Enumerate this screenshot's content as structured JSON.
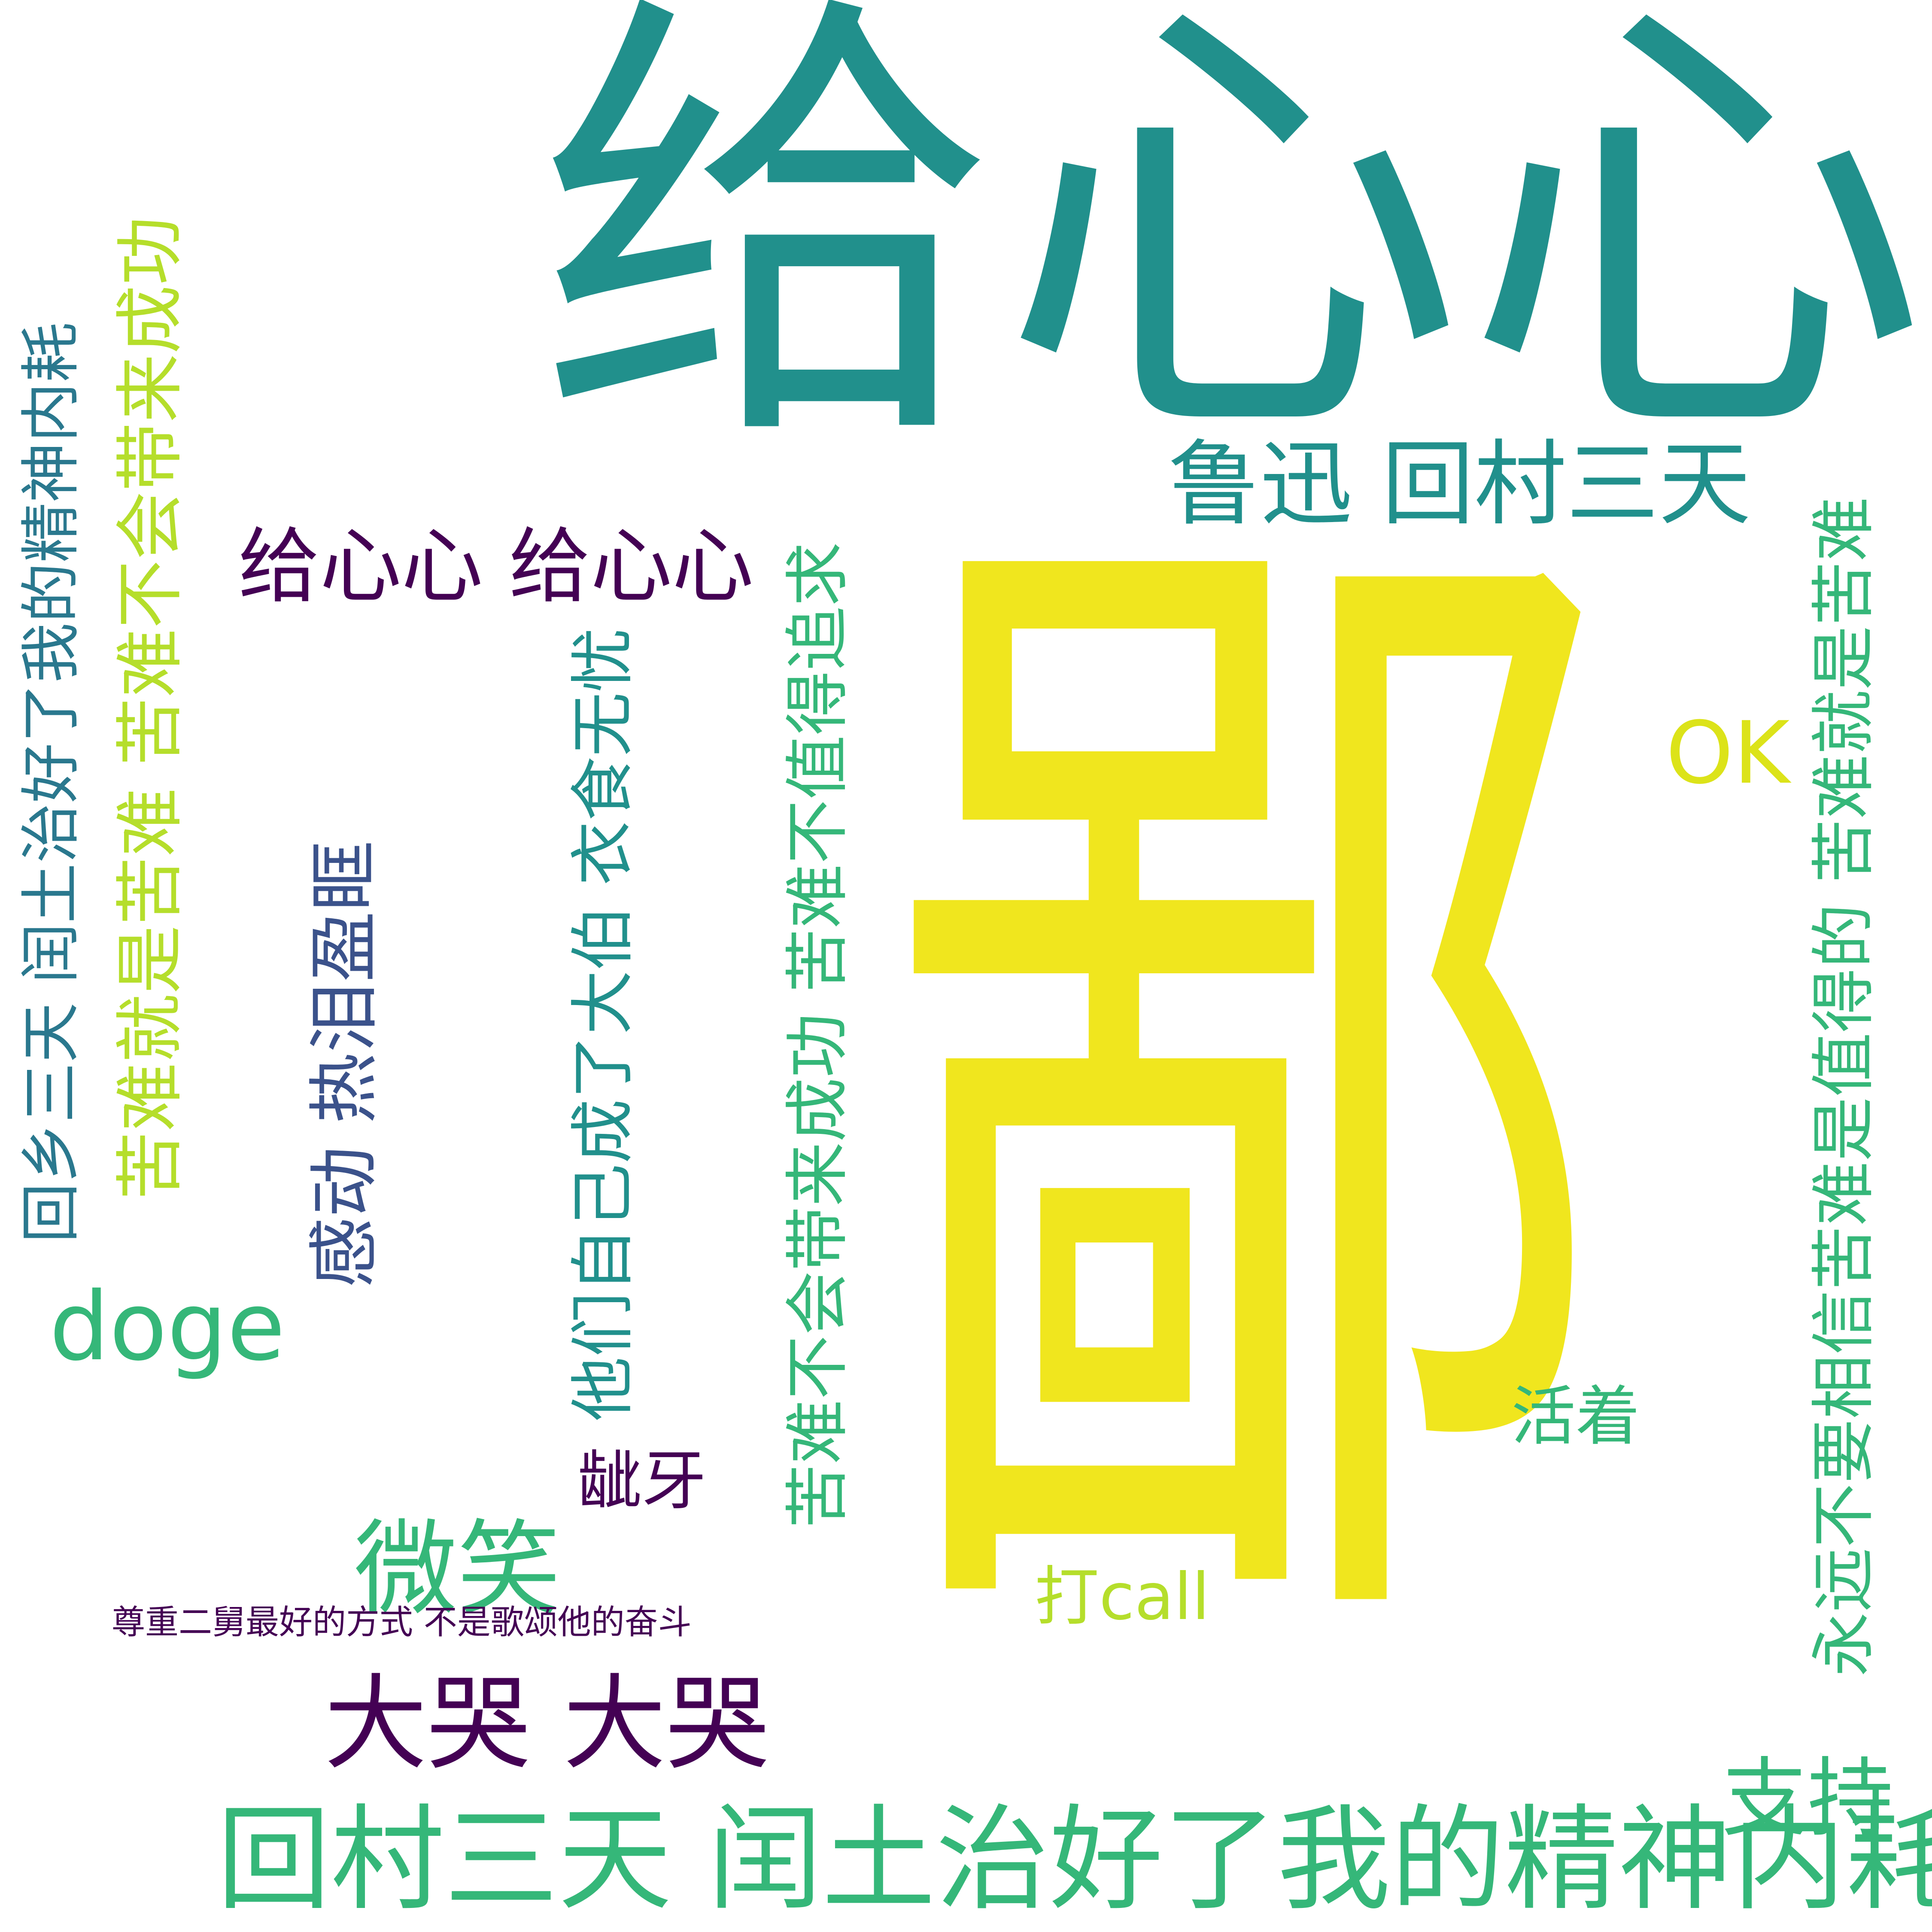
{
  "palette": {
    "teal": "#21908C",
    "yellow": "#F0E61E",
    "lime": "#B5DE2B",
    "green": "#35B779",
    "purple": "#440154",
    "blue": "#3B528B",
    "mid_teal": "#2A788E",
    "white": "#ffffff"
  },
  "words": [
    {
      "key": "w01",
      "text": "给心心"
    },
    {
      "key": "w02",
      "text": "鄙"
    },
    {
      "key": "w03",
      "text": "回村三天 闰土治好了我的精神内耗"
    },
    {
      "key": "w04",
      "text": "鲁迅 回村三天"
    },
    {
      "key": "w05",
      "text": "给心心 给心心"
    },
    {
      "key": "w06",
      "text": "感动 热泪盈眶"
    },
    {
      "key": "w07",
      "text": "doge"
    },
    {
      "key": "w08",
      "text": "微笑"
    },
    {
      "key": "w09",
      "text": "大哭 大哭"
    },
    {
      "key": "w10",
      "text": "尊重二舅最好的方式 不是歌颂他的奋斗"
    },
    {
      "key": "w11",
      "text": "龇牙"
    },
    {
      "key": "w12",
      "text": "OK"
    },
    {
      "key": "w13",
      "text": "活着"
    },
    {
      "key": "w14",
      "text": "打call"
    },
    {
      "key": "w15",
      "text": "支持"
    },
    {
      "key": "w16",
      "text": "回乡三天 闰土治好了我的精神内耗"
    },
    {
      "key": "w17",
      "text": "苦难就是苦难 苦难不会带来成功"
    },
    {
      "key": "w18",
      "text": "他们自己成了大伯 衣食无忧"
    },
    {
      "key": "w19",
      "text": "苦难不会带来成功 苦难不值得追求"
    },
    {
      "key": "w20",
      "text": "永远不要相信苦难是值得的 苦难就是苦难"
    }
  ]
}
